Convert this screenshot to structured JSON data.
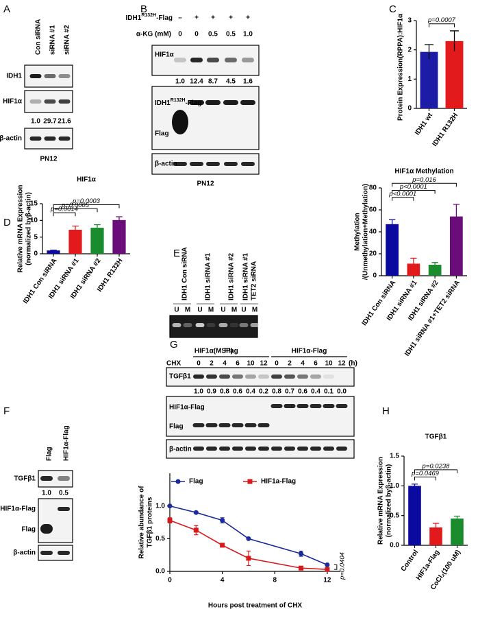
{
  "figure": {
    "panels": [
      "A",
      "B",
      "C",
      "D",
      "E",
      "F",
      "G",
      "H"
    ],
    "A": {
      "lanes": [
        "Con siRNA",
        "siRNA #1",
        "siRNA #2"
      ],
      "rows": [
        "IDH1",
        "HIF1α",
        "β-actin"
      ],
      "quant": [
        "1.0",
        "29.7",
        "21.6"
      ],
      "cell": "PN12"
    },
    "B": {
      "construct": "IDH1",
      "construct_sup": "R132H",
      "construct_suffix": "-Flag",
      "signs": [
        "–",
        "+",
        "+",
        "+",
        "+"
      ],
      "akg_label": "α-KG (mM)",
      "akg": [
        "0",
        "0",
        "0.5",
        "0.5",
        "1.0"
      ],
      "rows": [
        "HIF1α",
        "Flag",
        "β-actin"
      ],
      "quant": [
        "1.0",
        "12.4",
        "8.7",
        "4.5",
        "1.6"
      ],
      "cell": "PN12"
    },
    "E": {
      "lanes": [
        [
          "IDH1 Con siRNA"
        ],
        [
          "IDH1 siRNA #1"
        ],
        [
          "IDH1 siRNA #2"
        ],
        [
          "IDH1 siRNA #1",
          "TET2 siRNA"
        ]
      ],
      "um": [
        "U",
        "M"
      ],
      "caption": "HIF1α(MSP)"
    },
    "F": {
      "lanes": [
        "Flag",
        "HIF1α-Flag"
      ],
      "rows": [
        "TGFβ1",
        "HIF1α-Flag",
        "Flag",
        "β-actin"
      ],
      "quant": [
        "1.0",
        "0.5"
      ]
    },
    "G": {
      "groups": [
        "Flag",
        "HIF1α-Flag"
      ],
      "chx": "CHX",
      "times": [
        "0",
        "2",
        "4",
        "6",
        "10",
        "12"
      ],
      "unit": "(h)",
      "rows": [
        "TGFβ1",
        "HIF1α-Flag",
        "Flag",
        "β-actin"
      ],
      "quant": [
        "1.0",
        "0.9",
        "0.8",
        "0.6",
        "0.4",
        "0.2",
        "0.8",
        "0.7",
        "0.6",
        "0.4",
        "0.1",
        "0.0"
      ]
    }
  },
  "chart_data": [
    {
      "type": "bar",
      "ylabel": "Protein Expression(RPPA):HIF1α",
      "categories": [
        "IDH1 wt",
        "IDH1 R132H"
      ],
      "values": [
        1.93,
        2.3
      ],
      "errors": [
        0.25,
        0.35
      ],
      "colors": [
        "#1c1ca6",
        "#e31a1c"
      ],
      "error_color": "#000000",
      "ylim": [
        0,
        3
      ],
      "yticks": [
        0,
        1,
        2,
        3
      ],
      "annotations": [
        {
          "text": "p=0.0007",
          "from": 0,
          "to": 1
        }
      ]
    },
    {
      "type": "bar",
      "title": "HIF1α",
      "ylabel": [
        "Relative mRNA Expression",
        "(normalized byβ-actin)"
      ],
      "categories": [
        "IDH1 Con siRNA",
        "IDH1 siRNA #1",
        "IDH1 siRNA #2",
        "IDH1 R132H"
      ],
      "values": [
        1.0,
        7.2,
        7.8,
        10.1
      ],
      "errors": [
        0.1,
        1.1,
        0.9,
        1.0
      ],
      "colors": [
        "#0a0aa0",
        "#e31a1c",
        "#1a8c2e",
        "#6a0d7a"
      ],
      "ylim": [
        0,
        15
      ],
      "yticks": [
        0,
        5,
        10,
        15
      ],
      "annotations": [
        {
          "text": "p=0.0014",
          "from": 0,
          "to": 1
        },
        {
          "text": "p=0.0005",
          "from": 0,
          "to": 2
        },
        {
          "text": "p=0.0003",
          "from": 0,
          "to": 3
        }
      ]
    },
    {
      "type": "bar",
      "title": "HIF1α Methylation",
      "ylabel": [
        "Methylation",
        "/(Unmethylation+Methylation)"
      ],
      "categories": [
        "IDH1 Con siRNA",
        "IDH1 siRNA #1",
        "IDH1 siRNA #2",
        "IDH1 siRNA #1+TET2 siRNA"
      ],
      "values": [
        47,
        11,
        10,
        54
      ],
      "errors": [
        4,
        5,
        2,
        11
      ],
      "colors": [
        "#0a0aa0",
        "#e31a1c",
        "#1a8c2e",
        "#6a0d7a"
      ],
      "ylim": [
        0,
        80
      ],
      "yticks": [
        0,
        20,
        40,
        60,
        80
      ],
      "annotations": [
        {
          "text": "p<0.0001",
          "from": 0,
          "to": 1
        },
        {
          "text": "p<0.0001",
          "from": 0,
          "to": 2
        },
        {
          "text": "p=0.016",
          "from": 0,
          "to": 3
        }
      ]
    },
    {
      "type": "line",
      "ylabel": [
        "Relative abundance of",
        "TGFβ1 proteins"
      ],
      "xlabel": "Hours post treatment of CHX",
      "xlim": [
        0,
        13
      ],
      "xticks": [
        0,
        4,
        8,
        12
      ],
      "ylim": [
        0,
        1.5
      ],
      "yticks": [
        {
          "value": 0,
          "label": "0.0"
        },
        0.5,
        {
          "value": 1,
          "label": "1.0"
        }
      ],
      "series": [
        {
          "name": "Flag",
          "color": "#1c2a9b",
          "marker": "circle",
          "x": [
            0,
            2,
            4,
            6,
            10,
            12
          ],
          "values": [
            1.0,
            0.9,
            0.78,
            0.5,
            0.27,
            0.1
          ],
          "errors": [
            null,
            null,
            0.04,
            null,
            0.04,
            null
          ]
        },
        {
          "name": "HIF1a-Flag",
          "color": "#d7191c",
          "marker": "square",
          "x": [
            0,
            2,
            4,
            6,
            10,
            12
          ],
          "values": [
            0.78,
            0.63,
            0.4,
            0.2,
            0.05,
            0.03
          ],
          "errors": [
            0.04,
            0.07,
            null,
            0.11,
            null,
            null
          ]
        }
      ],
      "annotations": [
        {
          "text": "p=0.0404"
        }
      ]
    },
    {
      "type": "bar",
      "title": "TGFβ1",
      "ylabel": [
        "Relative mRNA Expression",
        "(normalized byβ-actin)"
      ],
      "categories": [
        "Control",
        "HIF1a-Flag",
        "CoCl₂(100 uM)"
      ],
      "values": [
        1.0,
        0.3,
        0.45
      ],
      "errors": [
        0.03,
        0.07,
        0.04
      ],
      "colors": [
        "#0a0aa0",
        "#e31a1c",
        "#1a8c2e"
      ],
      "ylim": [
        0,
        1.5
      ],
      "yticks": [
        {
          "value": 0,
          "label": "0.0"
        },
        0.5,
        {
          "value": 1,
          "label": "1.0"
        },
        1.5
      ],
      "annotations": [
        {
          "text": "p=0.0469",
          "from": 0,
          "to": 1
        },
        {
          "text": "p=0.0238",
          "from": 0,
          "to": 2
        }
      ]
    }
  ]
}
